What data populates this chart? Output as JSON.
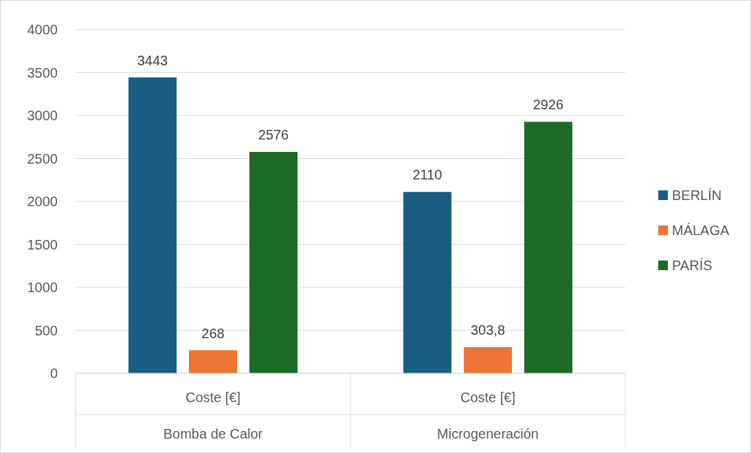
{
  "chart_data": {
    "type": "bar",
    "categories": [
      "Coste [€]",
      "Coste [€]"
    ],
    "annotations": [
      "Bomba de Calor",
      "Microgeneración"
    ],
    "series": [
      {
        "name": "BERLÍN",
        "color": "#175e80",
        "values": [
          3443,
          2110
        ],
        "value_labels": [
          "3443",
          "2110"
        ]
      },
      {
        "name": "MÁLAGA",
        "color": "#ed7434",
        "values": [
          268,
          303.8
        ],
        "value_labels": [
          "268",
          "303,8"
        ]
      },
      {
        "name": "PARÍS",
        "color": "#1c6b24",
        "values": [
          2576,
          2926
        ],
        "value_labels": [
          "2576",
          "2926"
        ]
      }
    ],
    "ylim": [
      0,
      4000
    ],
    "yticks": [
      0,
      500,
      1000,
      1500,
      2000,
      2500,
      3000,
      3500,
      4000
    ],
    "grid": "y",
    "legend": "right"
  }
}
